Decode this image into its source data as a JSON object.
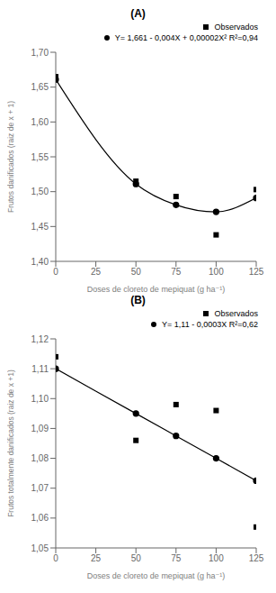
{
  "chart_data": [
    {
      "type": "scatter",
      "title": "(A)",
      "xlabel": "Doses de cloreto de mepiquat (g ha⁻¹)",
      "ylabel": "Frutos danificados (raiz de x + 1)",
      "x": [
        0,
        50,
        75,
        100,
        125
      ],
      "series": [
        {
          "name": "Observados",
          "type": "scatter",
          "marker": "square",
          "color": "#000000",
          "values": [
            1.665,
            1.515,
            1.493,
            1.438,
            1.503
          ]
        },
        {
          "name": "Y= 1,661 - 0,004X + 0,00002X² R²=0,94",
          "type": "line",
          "marker": "circle",
          "color": "#000000",
          "values": [
            1.661,
            1.511,
            1.481,
            1.471,
            1.491
          ]
        }
      ],
      "xlim": [
        0,
        125
      ],
      "xticks": [
        0,
        25,
        50,
        75,
        100,
        125
      ],
      "ylim": [
        1.4,
        1.7
      ],
      "yticks": [
        {
          "value": 1.4,
          "label": "1,40"
        },
        {
          "value": 1.45,
          "label": "1,45"
        },
        {
          "value": 1.5,
          "label": "1,50"
        },
        {
          "value": 1.55,
          "label": "1,55"
        },
        {
          "value": 1.6,
          "label": "1,60"
        },
        {
          "value": 1.65,
          "label": "1,65"
        },
        {
          "value": 1.7,
          "label": "1,70"
        }
      ],
      "legend": "top right",
      "grid": false
    },
    {
      "type": "scatter",
      "title": "(B)",
      "xlabel": "Doses de cloreto de mepiquat (g ha⁻¹)",
      "ylabel": "Frutos totalmente danificados (raiz de x +1)",
      "x": [
        0,
        50,
        75,
        100,
        125
      ],
      "series": [
        {
          "name": "Observados",
          "type": "scatter",
          "marker": "square",
          "color": "#000000",
          "values": [
            1.114,
            1.086,
            1.098,
            1.096,
            1.057
          ]
        },
        {
          "name": "Y= 1,11 - 0,0003X R²=0,62",
          "type": "line",
          "marker": "circle",
          "color": "#000000",
          "values": [
            1.11,
            1.095,
            1.0875,
            1.08,
            1.0725
          ]
        }
      ],
      "xlim": [
        0,
        125
      ],
      "xticks": [
        0,
        25,
        50,
        75,
        100,
        125
      ],
      "ylim": [
        1.05,
        1.12
      ],
      "yticks": [
        {
          "value": 1.05,
          "label": "1,05"
        },
        {
          "value": 1.06,
          "label": "1,06"
        },
        {
          "value": 1.07,
          "label": "1,07"
        },
        {
          "value": 1.08,
          "label": "1,08"
        },
        {
          "value": 1.09,
          "label": "1,09"
        },
        {
          "value": 1.1,
          "label": "1,10"
        },
        {
          "value": 1.11,
          "label": "1,11"
        },
        {
          "value": 1.12,
          "label": "1,12"
        }
      ],
      "legend": "top right",
      "grid": false
    }
  ]
}
